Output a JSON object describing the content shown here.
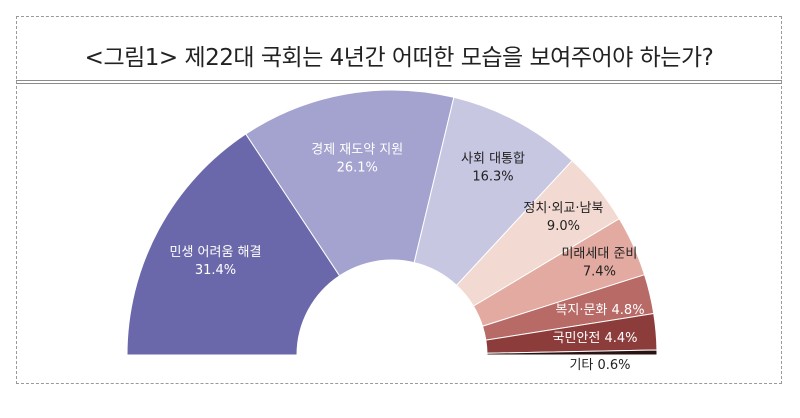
{
  "title": "<그림1> 제22대 국회는 4년간 어떠한 모습을 보여주어야 하는가?",
  "chart_data": {
    "type": "pie",
    "variant": "half-donut",
    "categories": [
      "민생 어려움 해결",
      "경제 재도약 지원",
      "사회 대통합",
      "정치·외교·남북",
      "미래세대 준비",
      "복지·문화",
      "국민안전",
      "기타"
    ],
    "values": [
      31.4,
      26.1,
      16.3,
      9.0,
      7.4,
      4.8,
      4.4,
      0.6
    ],
    "value_labels": [
      "31.4%",
      "26.1%",
      "16.3%",
      "9.0%",
      "7.4%",
      "4.8%",
      "4.4%",
      "0.6%"
    ],
    "colors": [
      "#6a68aa",
      "#a4a2cf",
      "#c8c7e2",
      "#f2d9d2",
      "#e2aaa0",
      "#b86a66",
      "#8d3c3c",
      "#2b1212"
    ],
    "label_colors": [
      "#ffffff",
      "#ffffff",
      "#222222",
      "#222222",
      "#222222",
      "#ffffff",
      "#ffffff",
      "#222222"
    ]
  }
}
